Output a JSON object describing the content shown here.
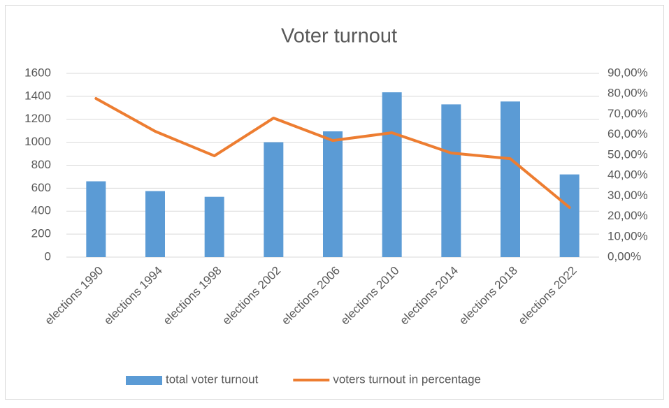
{
  "chart_data": {
    "type": "bar-line",
    "title": "Voter turnout",
    "categories": [
      "elections 1990",
      "elections 1994",
      "elections 1998",
      "elections 2002",
      "elections 2006",
      "elections 2010",
      "elections 2014",
      "elections 2018",
      "elections 2022"
    ],
    "series": [
      {
        "name": "total voter turnout",
        "color": "#5b9bd5",
        "type": "bar",
        "values": [
          660,
          575,
          525,
          1000,
          1095,
          1435,
          1330,
          1355,
          720
        ]
      },
      {
        "name": "voters turnout in percentage",
        "color": "#ed7d31",
        "type": "line",
        "axis": "y2",
        "values": [
          77.7,
          61.6,
          49.6,
          68.1,
          57.1,
          60.9,
          51.0,
          48.2,
          24.3
        ]
      }
    ],
    "ylim": [
      0,
      1600
    ],
    "yticks": [
      0,
      200,
      400,
      600,
      800,
      1000,
      1200,
      1400,
      1600
    ],
    "y2lim": [
      0,
      90
    ],
    "y2ticks": [
      {
        "value": 0,
        "label": "0,00%"
      },
      {
        "value": 10,
        "label": "10,00%"
      },
      {
        "value": 20,
        "label": "20,00%"
      },
      {
        "value": 30,
        "label": "30,00%"
      },
      {
        "value": 40,
        "label": "40,00%"
      },
      {
        "value": 50,
        "label": "50,00%"
      },
      {
        "value": 60,
        "label": "60,00%"
      },
      {
        "value": 70,
        "label": "70,00%"
      },
      {
        "value": 80,
        "label": "80,00%"
      },
      {
        "value": 90,
        "label": "90,00%"
      }
    ],
    "grid": true,
    "legend": "bottom"
  }
}
